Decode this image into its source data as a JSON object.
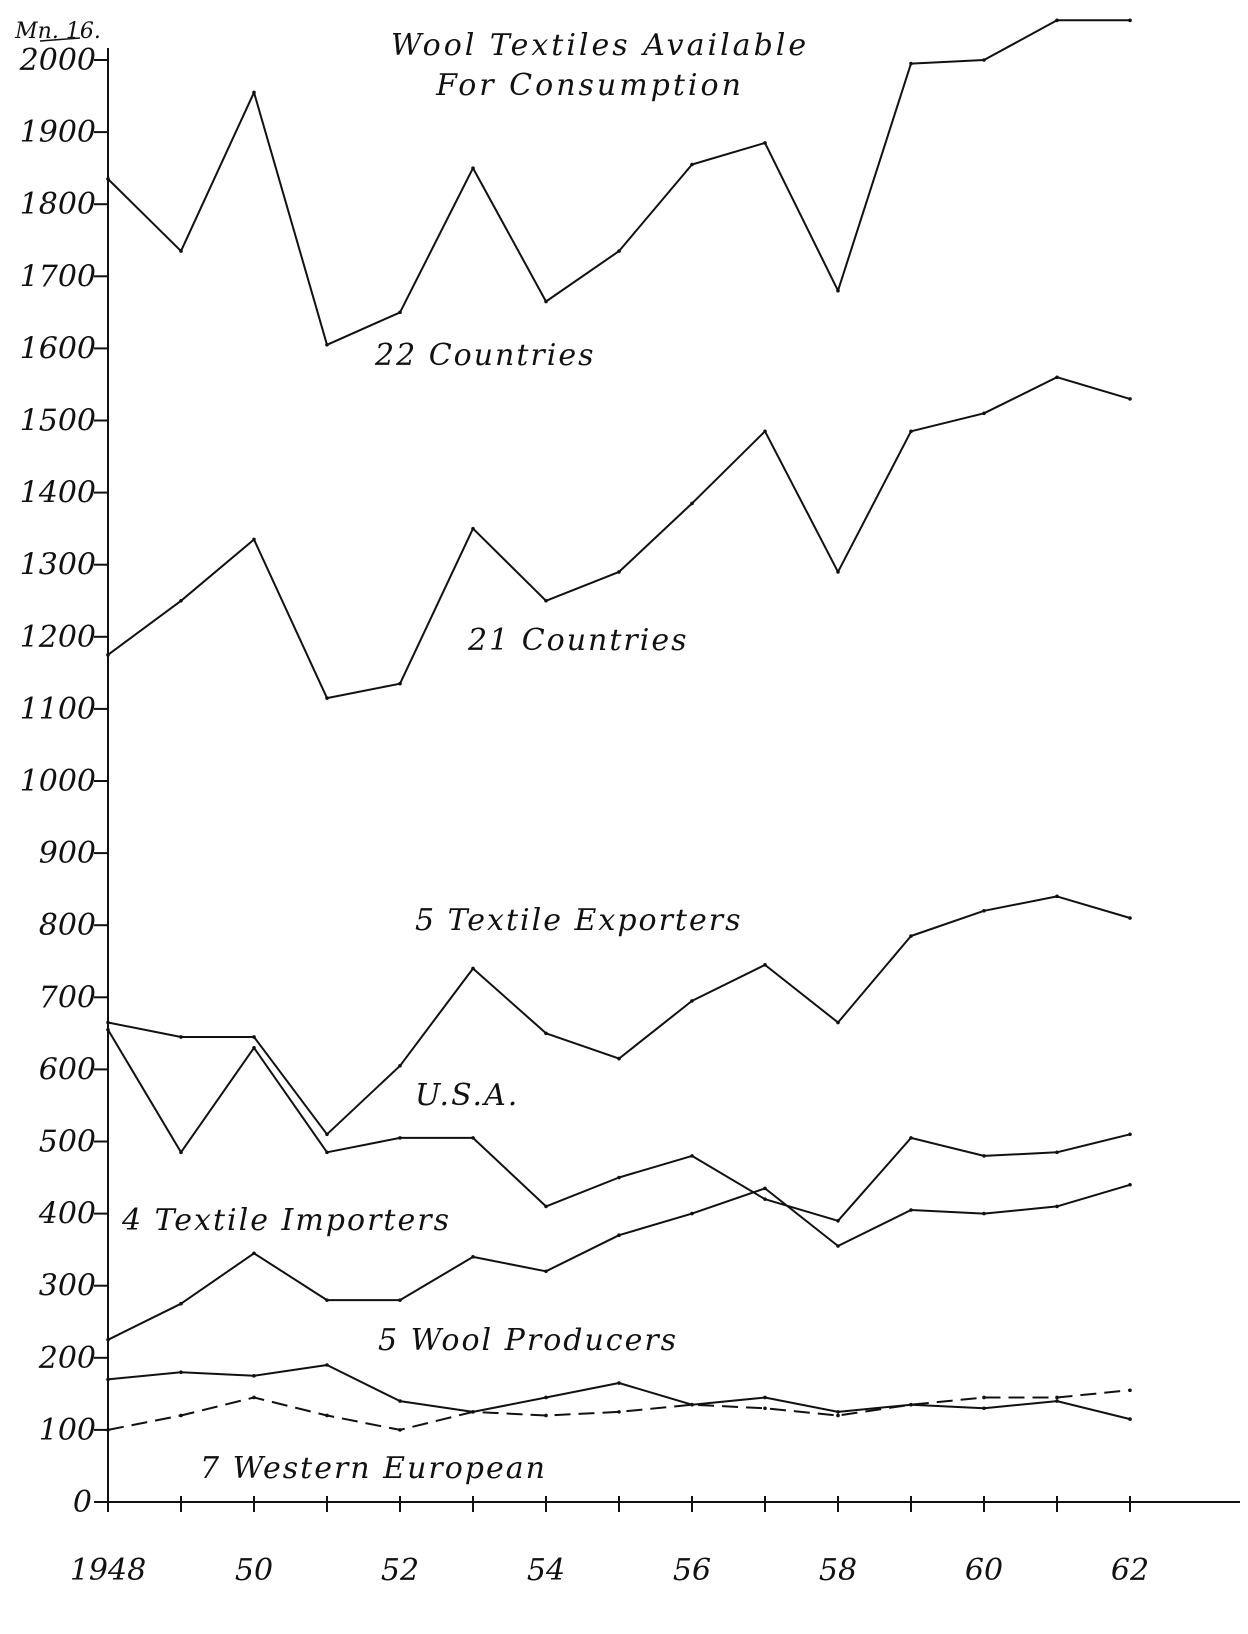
{
  "chart_data": {
    "type": "line",
    "title": [
      "Wool Textiles Available",
      "For Consumption"
    ],
    "units_label": "Mn. 16.",
    "x": [
      1948,
      1949,
      1950,
      1951,
      1952,
      1953,
      1954,
      1955,
      1956,
      1957,
      1958,
      1959,
      1960,
      1961,
      1962
    ],
    "x_tick_labels": [
      {
        "x": 1948,
        "label": "1948"
      },
      {
        "x": 1950,
        "label": "50"
      },
      {
        "x": 1952,
        "label": "52"
      },
      {
        "x": 1954,
        "label": "54"
      },
      {
        "x": 1956,
        "label": "56"
      },
      {
        "x": 1958,
        "label": "58"
      },
      {
        "x": 1960,
        "label": "60"
      },
      {
        "x": 1962,
        "label": "62"
      }
    ],
    "y_ticks": [
      0,
      100,
      200,
      300,
      400,
      500,
      600,
      700,
      800,
      900,
      1000,
      1100,
      1200,
      1300,
      1400,
      1500,
      1600,
      1700,
      1800,
      1900,
      2000
    ],
    "ylim": [
      0,
      2000
    ],
    "xlim": [
      1948,
      1962
    ],
    "grid": false,
    "series": [
      {
        "name": "22 Countries",
        "style": "solid",
        "values": [
          1835,
          1735,
          1955,
          1605,
          1650,
          1850,
          1665,
          1735,
          1855,
          1885,
          1680,
          1995,
          2000,
          2055,
          2055
        ]
      },
      {
        "name": "21 Countries",
        "style": "solid",
        "values": [
          1175,
          1250,
          1335,
          1115,
          1135,
          1350,
          1250,
          1290,
          1385,
          1485,
          1290,
          1485,
          1510,
          1560,
          1530
        ]
      },
      {
        "name": "5 Textile Exporters",
        "style": "solid",
        "values": [
          665,
          645,
          645,
          510,
          605,
          740,
          650,
          615,
          695,
          745,
          665,
          785,
          820,
          840,
          810
        ]
      },
      {
        "name": "U.S.A.",
        "style": "solid",
        "values": [
          655,
          485,
          630,
          485,
          505,
          505,
          410,
          450,
          480,
          420,
          390,
          505,
          480,
          485,
          510
        ]
      },
      {
        "name": "4 Textile Importers",
        "style": "solid",
        "values": [
          225,
          275,
          345,
          280,
          280,
          340,
          320,
          370,
          400,
          435,
          355,
          405,
          400,
          410,
          440
        ]
      },
      {
        "name": "5 Wool Producers",
        "style": "solid",
        "values": [
          170,
          180,
          175,
          190,
          140,
          125,
          145,
          165,
          135,
          145,
          125,
          135,
          130,
          140,
          115
        ]
      },
      {
        "name": "7 Western European",
        "style": "dashed",
        "values": [
          100,
          120,
          145,
          120,
          100,
          125,
          120,
          125,
          135,
          130,
          120,
          135,
          145,
          145,
          155
        ]
      }
    ],
    "annotations": [
      {
        "text": "22 Countries"
      },
      {
        "text": "21 Countries"
      },
      {
        "text": "5 Textile Exporters"
      },
      {
        "text": "U.S.A."
      },
      {
        "text": "4 Textile Importers"
      },
      {
        "text": "5 Wool Producers"
      },
      {
        "text": "7 Western European"
      }
    ]
  }
}
